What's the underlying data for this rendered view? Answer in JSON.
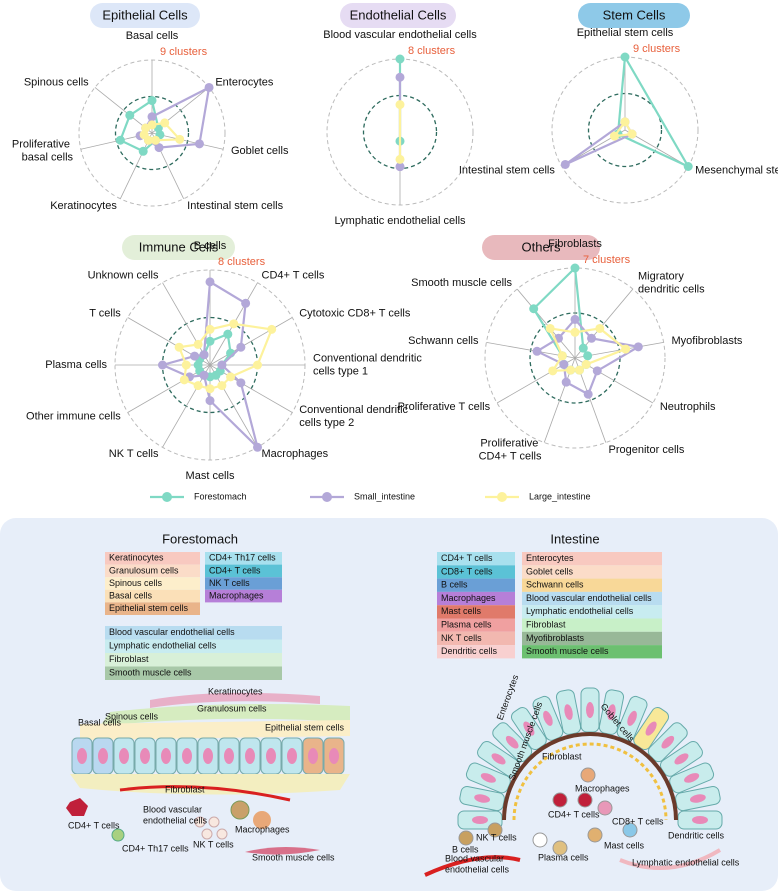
{
  "chart_data": [
    {
      "type": "radar",
      "title": "Epithelial Cells",
      "title_color": "#dde7f8",
      "categories": [
        "Basal cells",
        "Enterocytes",
        "Goblet cells",
        "Intestinal stem cells",
        "Keratinocytes",
        "Proliferative basal cells",
        "Spinous cells"
      ],
      "rlim": [
        0,
        9
      ],
      "rticks": [
        {
          "value": 9,
          "label": "9 clusters"
        }
      ],
      "series": [
        {
          "name": "Forestomach",
          "color": "#7fd9c4",
          "values": [
            4,
            1,
            1,
            1,
            2.5,
            4,
            3.5
          ]
        },
        {
          "name": "Small_intestine",
          "color": "#b3a8d8",
          "values": [
            2,
            9,
            6,
            2,
            1,
            1.5,
            1
          ]
        },
        {
          "name": "Large_intestine",
          "color": "#fdf29c",
          "values": [
            1,
            2,
            3.5,
            1,
            1,
            1,
            1
          ]
        }
      ]
    },
    {
      "type": "radar",
      "title": "Endothelial  Cells",
      "title_color": "#e6dcf3",
      "categories": [
        "Blood vascular endothelial cells",
        "Lymphatic endothelial cells"
      ],
      "rlim": [
        0,
        8
      ],
      "rticks": [
        {
          "value": 8,
          "label": "8 clusters"
        }
      ],
      "series": [
        {
          "name": "Forestomach",
          "color": "#7fd9c4",
          "values": [
            8,
            1
          ]
        },
        {
          "name": "Small_intestine",
          "color": "#b3a8d8",
          "values": [
            6,
            3.8
          ]
        },
        {
          "name": "Large_intestine",
          "color": "#fdf29c",
          "values": [
            3,
            3
          ]
        }
      ]
    },
    {
      "type": "radar",
      "title": "Stem Cells",
      "title_color": "#8ec9e8",
      "categories": [
        "Epithelial stem cells",
        "Mesenchymal stem cells",
        "Intestinal stem cells"
      ],
      "rlim": [
        0,
        9
      ],
      "rticks": [
        {
          "value": 9,
          "label": "9 clusters"
        }
      ],
      "series": [
        {
          "name": "Forestomach",
          "color": "#7fd9c4",
          "values": [
            9,
            9,
            1
          ]
        },
        {
          "name": "Small_intestine",
          "color": "#b3a8d8",
          "values": [
            1,
            1,
            8.5
          ]
        },
        {
          "name": "Large_intestine",
          "color": "#fdf29c",
          "values": [
            1,
            1,
            1.5
          ]
        }
      ]
    },
    {
      "type": "radar",
      "title": "Immune Cells",
      "title_color": "#e3efd9",
      "categories": [
        "B cells",
        "CD4+ T cells",
        "Cytotoxic CD8+ T cells",
        "Conventional dendritic cells type 1",
        "Conventional dendritic cells type 2",
        "Macrophages",
        "Mast cells",
        "NK T cells",
        "Other immune cells",
        "Plasma cells",
        "T cells",
        "Unknown cells"
      ],
      "rlim": [
        0,
        8
      ],
      "rticks": [
        {
          "value": 8,
          "label": "8 clusters"
        }
      ],
      "series": [
        {
          "name": "Forestomach",
          "color": "#7fd9c4",
          "values": [
            2,
            3,
            2,
            1,
            1,
            1,
            1,
            1,
            1,
            1,
            1,
            1
          ]
        },
        {
          "name": "Small_intestine",
          "color": "#b3a8d8",
          "values": [
            7,
            6,
            3,
            1,
            3,
            8,
            3,
            1,
            2,
            4,
            1.5,
            1
          ]
        },
        {
          "name": "Large_intestine",
          "color": "#fdf29c",
          "values": [
            3,
            4,
            6,
            4,
            2,
            2,
            2,
            2,
            2.5,
            2,
            3,
            2
          ]
        }
      ]
    },
    {
      "type": "radar",
      "title": "Others",
      "title_color": "#e8b9bd",
      "categories": [
        "Fibroblasts",
        "Migratory dendritic cells",
        "Myofibroblasts",
        "Neutrophils",
        "Progenitor cells",
        "Proliferative CD4+ T cells",
        "Proliferative T cells",
        "Schwann cells",
        "Smooth muscle cells"
      ],
      "rlim": [
        0,
        7
      ],
      "rticks": [
        {
          "value": 7,
          "label": "7 clusters"
        }
      ],
      "series": [
        {
          "name": "Forestomach",
          "color": "#7fd9c4",
          "values": [
            7,
            1,
            1,
            1,
            1,
            1,
            1,
            1,
            5
          ]
        },
        {
          "name": "Small_intestine",
          "color": "#b3a8d8",
          "values": [
            3,
            2,
            5,
            2,
            3,
            2,
            1,
            3,
            2
          ]
        },
        {
          "name": "Large_intestine",
          "color": "#fdf29c",
          "values": [
            2,
            3,
            4,
            1,
            1,
            1,
            2,
            1,
            3
          ]
        }
      ]
    }
  ],
  "illustration": {
    "forestomach": {
      "title": "Forestomach",
      "legend_a": [
        {
          "name": "Keratinocytes",
          "color": "#f8c9c0"
        },
        {
          "name": "Granulosum cells",
          "color": "#fbdcc8"
        },
        {
          "name": "Spinous cells",
          "color": "#fdeecb"
        },
        {
          "name": "Basal cells",
          "color": "#fbe0b8"
        },
        {
          "name": "Epithelial stem cells",
          "color": "#e9b48a"
        }
      ],
      "legend_b": [
        {
          "name": "CD4+ Th17 cells",
          "color": "#a8e0ee"
        },
        {
          "name": "CD4+ T cells",
          "color": "#5bc2d6"
        },
        {
          "name": "NK T cells",
          "color": "#6a9fd6"
        },
        {
          "name": "Macrophages",
          "color": "#b67fd8"
        }
      ],
      "legend_c": [
        {
          "name": "Blood vascular endothelial cells",
          "color": "#b8dcf0"
        },
        {
          "name": "Lymphatic endothelial cells",
          "color": "#c8ecf0"
        },
        {
          "name": "Fibroblast",
          "color": "#d8f0d8"
        },
        {
          "name": "Smooth muscle cells",
          "color": "#a8c8a8"
        }
      ],
      "labels": [
        "Keratinocytes",
        "Granulosum cells",
        "Basal cells",
        "Spinous cells",
        "Epithelial stem cells",
        "Fibroblast",
        "Blood vascular endothelial cells",
        "CD4+ T cells",
        "NK T cells",
        "Macrophages",
        "CD4+ Th17 cells",
        "Smooth muscle cells"
      ]
    },
    "intestine": {
      "title": "Intestine",
      "legend_a": [
        {
          "name": "CD4+ T cells",
          "color": "#a8e0ee"
        },
        {
          "name": "CD8+ T cells",
          "color": "#5bc2d6"
        },
        {
          "name": "B cells",
          "color": "#6a9fd6"
        },
        {
          "name": "Macrophages",
          "color": "#b67fd8"
        },
        {
          "name": "Mast cells",
          "color": "#e07a6a"
        },
        {
          "name": "Plasma cells",
          "color": "#f0a0a0"
        },
        {
          "name": "NK T cells",
          "color": "#f2b8b0"
        },
        {
          "name": "Dendritic cells",
          "color": "#f8d0d0"
        }
      ],
      "legend_b": [
        {
          "name": "Enterocytes",
          "color": "#f8c9c0"
        },
        {
          "name": "Goblet cells",
          "color": "#fbdcc8"
        },
        {
          "name": "Schwann cells",
          "color": "#f8d898"
        },
        {
          "name": "Blood vascular endothelial cells",
          "color": "#b8dcf0"
        },
        {
          "name": "Lymphatic endothelial cells",
          "color": "#c8ecf0"
        },
        {
          "name": "Fibroblast",
          "color": "#c8f0c8"
        },
        {
          "name": "Myofibroblasts",
          "color": "#98b898"
        },
        {
          "name": "Smooth muscle cells",
          "color": "#6cc070"
        }
      ],
      "labels": [
        "Enterocytes",
        "Goblet cells",
        "Smooth muscle cells",
        "Fibroblast",
        "Macrophages",
        "CD4+ T cells",
        "CD8+ T cells",
        "Dendritic cells",
        "NK T cells",
        "Mast cells",
        "B cells",
        "Plasma cells",
        "Blood vascular endothelial cells",
        "Lymphatic endothelial cells"
      ]
    }
  }
}
